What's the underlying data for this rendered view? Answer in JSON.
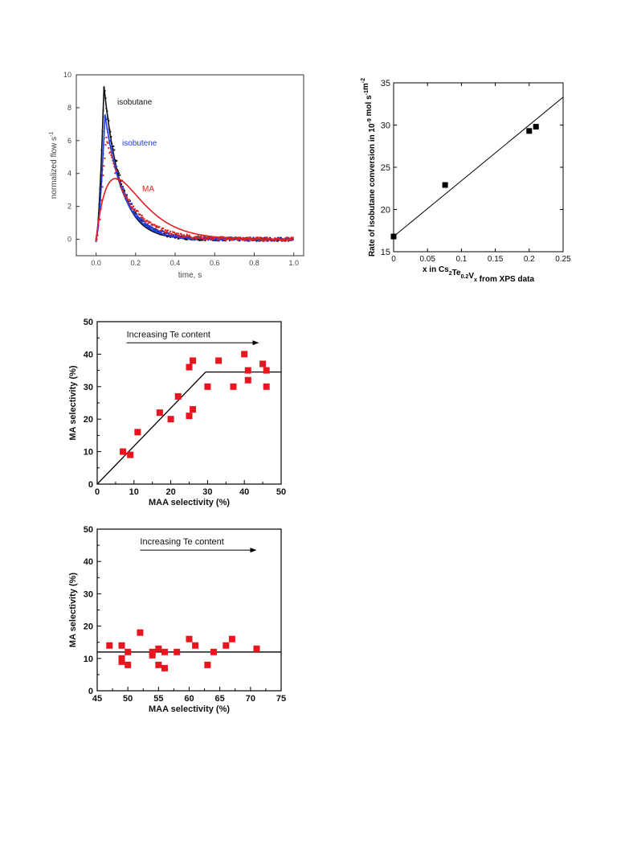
{
  "chart_data": [
    {
      "id": "flow",
      "type": "scatter",
      "title": "",
      "xlabel": "time, s",
      "ylabel": "normalized flow s",
      "ylabel_sup": "-1",
      "xlim": [
        -0.1,
        1.05
      ],
      "ylim": [
        -1,
        10
      ],
      "xticks": [
        {
          "v": 0.0,
          "label": "0.0"
        },
        {
          "v": 0.2,
          "label": "0.2"
        },
        {
          "v": 0.4,
          "label": "0.4"
        },
        {
          "v": 0.6,
          "label": "0.6"
        },
        {
          "v": 0.8,
          "label": "0.8"
        },
        {
          "v": 1.0,
          "label": "1.0"
        }
      ],
      "yticks": [
        {
          "v": 0,
          "label": "0"
        },
        {
          "v": 2,
          "label": "2"
        },
        {
          "v": 4,
          "label": "4"
        },
        {
          "v": 6,
          "label": "6"
        },
        {
          "v": 8,
          "label": "8"
        },
        {
          "v": 10,
          "label": "10"
        }
      ],
      "grid": false,
      "series": [
        {
          "name": "isobutane",
          "color": "#111111",
          "peak_t": 0.04,
          "peak": 9.3,
          "pattern": "curve and points"
        },
        {
          "name": "isobutene",
          "color": "#1f3de0",
          "peak_t": 0.045,
          "peak": 7.6,
          "pattern": "curve and points"
        },
        {
          "name": "MA",
          "color": "#e02020",
          "peak_t": 0.05,
          "peak": 6.2,
          "model_peak_t": 0.1,
          "model_peak": 3.7,
          "pattern": "curve and points"
        }
      ]
    },
    {
      "id": "rate",
      "type": "scatter",
      "title": "",
      "xlabel_parts": [
        {
          "t": "x in Cs",
          "sub": false
        },
        {
          "t": "2",
          "sub": true
        },
        {
          "t": "Te",
          "sub": false
        },
        {
          "t": "0.2",
          "sub": true
        },
        {
          "t": "V",
          "sub": false
        },
        {
          "t": "x",
          "sub": true
        },
        {
          "t": " from XPS data",
          "sub": false
        }
      ],
      "ylabel_parts": [
        {
          "t": "Rate of isobutane conversion in 10",
          "sup": false
        },
        {
          "t": "-9",
          "sup": true
        },
        {
          "t": " mol s",
          "sup": false
        },
        {
          "t": "-1",
          "sup": true
        },
        {
          "t": "m",
          "sup": false
        },
        {
          "t": "-2",
          "sup": true
        }
      ],
      "xlim": [
        0,
        0.25
      ],
      "ylim": [
        15,
        35
      ],
      "xticks": [
        {
          "v": 0,
          "label": "0"
        },
        {
          "v": 0.05,
          "label": "0.05"
        },
        {
          "v": 0.1,
          "label": "0.1"
        },
        {
          "v": 0.15,
          "label": "0.15"
        },
        {
          "v": 0.2,
          "label": "0.2"
        },
        {
          "v": 0.25,
          "label": "0.25"
        }
      ],
      "yticks": [
        {
          "v": 15,
          "label": "15"
        },
        {
          "v": 20,
          "label": "20"
        },
        {
          "v": 25,
          "label": "25"
        },
        {
          "v": 30,
          "label": "30"
        },
        {
          "v": 35,
          "label": "35"
        }
      ],
      "points": [
        [
          0,
          16.8
        ],
        [
          0.076,
          22.9
        ],
        [
          0.2,
          29.3
        ],
        [
          0.21,
          29.8
        ]
      ],
      "fit": [
        [
          0,
          16.8
        ],
        [
          0.25,
          33.3
        ]
      ],
      "point_color": "#000000"
    },
    {
      "id": "sel1",
      "type": "scatter",
      "title": "",
      "xlabel": "MAA selectivity (%)",
      "ylabel": "MA selectivity (%)",
      "annotation": "Increasing Te content",
      "arrow": {
        "from": [
          8,
          43.5
        ],
        "to": [
          44,
          43.5
        ]
      },
      "xlim": [
        0,
        50
      ],
      "ylim": [
        0,
        50
      ],
      "xticks": [
        {
          "v": 0,
          "label": "0"
        },
        {
          "v": 10,
          "label": "10"
        },
        {
          "v": 20,
          "label": "20"
        },
        {
          "v": 30,
          "label": "30"
        },
        {
          "v": 40,
          "label": "40"
        },
        {
          "v": 50,
          "label": "50"
        }
      ],
      "yticks": [
        {
          "v": 0,
          "label": "0"
        },
        {
          "v": 10,
          "label": "10"
        },
        {
          "v": 20,
          "label": "20"
        },
        {
          "v": 30,
          "label": "30"
        },
        {
          "v": 40,
          "label": "40"
        },
        {
          "v": 50,
          "label": "50"
        }
      ],
      "points": [
        [
          7,
          10
        ],
        [
          9,
          9
        ],
        [
          11,
          16
        ],
        [
          17,
          22
        ],
        [
          20,
          20
        ],
        [
          22,
          27
        ],
        [
          25,
          21
        ],
        [
          25,
          36
        ],
        [
          26,
          38
        ],
        [
          26,
          23
        ],
        [
          30,
          30
        ],
        [
          33,
          38
        ],
        [
          37,
          30
        ],
        [
          40,
          40
        ],
        [
          41,
          32
        ],
        [
          41,
          35
        ],
        [
          45,
          37
        ],
        [
          46,
          30
        ],
        [
          46,
          35
        ]
      ],
      "fit": [
        [
          0,
          0
        ],
        [
          29.5,
          34.5
        ],
        [
          50,
          34.5
        ]
      ],
      "point_color": "#e8141e"
    },
    {
      "id": "sel2",
      "type": "scatter",
      "title": "",
      "xlabel": "MAA selectivity (%)",
      "ylabel": "MA selectivity (%)",
      "annotation": "Increasing Te content",
      "arrow": {
        "from": [
          52,
          43.5
        ],
        "to": [
          71,
          43.5
        ]
      },
      "xlim": [
        45,
        75
      ],
      "ylim": [
        0,
        50
      ],
      "xticks": [
        {
          "v": 45,
          "label": "45"
        },
        {
          "v": 50,
          "label": "50"
        },
        {
          "v": 55,
          "label": "55"
        },
        {
          "v": 60,
          "label": "60"
        },
        {
          "v": 65,
          "label": "65"
        },
        {
          "v": 70,
          "label": "70"
        },
        {
          "v": 75,
          "label": "75"
        }
      ],
      "yticks": [
        {
          "v": 0,
          "label": "0"
        },
        {
          "v": 10,
          "label": "10"
        },
        {
          "v": 20,
          "label": "20"
        },
        {
          "v": 30,
          "label": "30"
        },
        {
          "v": 40,
          "label": "40"
        },
        {
          "v": 50,
          "label": "50"
        }
      ],
      "points": [
        [
          47,
          14
        ],
        [
          49,
          14
        ],
        [
          49,
          10
        ],
        [
          49,
          9
        ],
        [
          50,
          12
        ],
        [
          50,
          8
        ],
        [
          52,
          18
        ],
        [
          54,
          11
        ],
        [
          54,
          12
        ],
        [
          55,
          13
        ],
        [
          55,
          8
        ],
        [
          56,
          12
        ],
        [
          56,
          7
        ],
        [
          58,
          12
        ],
        [
          60,
          16
        ],
        [
          61,
          14
        ],
        [
          63,
          8
        ],
        [
          64,
          12
        ],
        [
          66,
          14
        ],
        [
          67,
          16
        ],
        [
          71,
          13
        ]
      ],
      "fit": [
        [
          45,
          12
        ],
        [
          75,
          12
        ]
      ],
      "point_color": "#e8141e"
    }
  ]
}
